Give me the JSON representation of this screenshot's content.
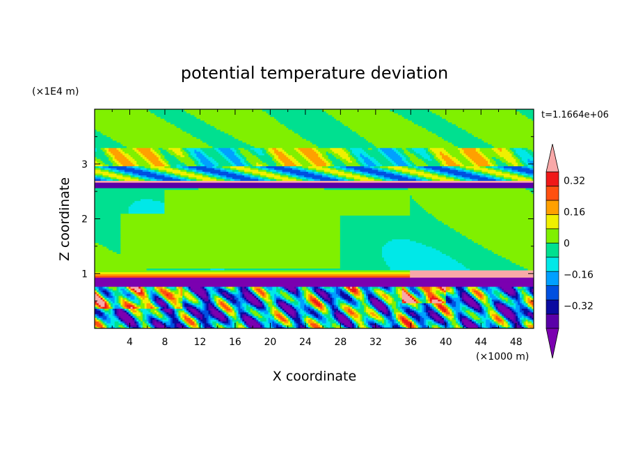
{
  "chart_data": {
    "type": "heatmap",
    "title": "potential temperature deviation",
    "xlabel": "X coordinate",
    "ylabel": "Z coordinate",
    "x_unit": "(×1000 m)",
    "y_unit": "(×1E4 m)",
    "time_label": "t=1.1664e+06",
    "xlim": [
      0,
      50
    ],
    "ylim": [
      0,
      4
    ],
    "x_ticks": [
      "4",
      "8",
      "12",
      "16",
      "20",
      "24",
      "28",
      "32",
      "36",
      "40",
      "44",
      "48"
    ],
    "y_ticks": [
      "1",
      "2",
      "3"
    ],
    "colorbar": {
      "levels": [
        -0.48,
        -0.4,
        -0.32,
        -0.24,
        -0.16,
        -0.08,
        0,
        0.08,
        0.16,
        0.24,
        0.32,
        0.4,
        0.48
      ],
      "labels": [
        "0.32",
        "0.16",
        "0",
        "−0.16",
        "−0.32"
      ],
      "colors": [
        "#7b00b0",
        "#5a00a8",
        "#0a0aa0",
        "#0050e0",
        "#00a0ff",
        "#00e8e8",
        "#00e090",
        "#80f000",
        "#f0f000",
        "#ffa000",
        "#ff5010",
        "#f01818",
        "#f8a8a8"
      ]
    }
  }
}
